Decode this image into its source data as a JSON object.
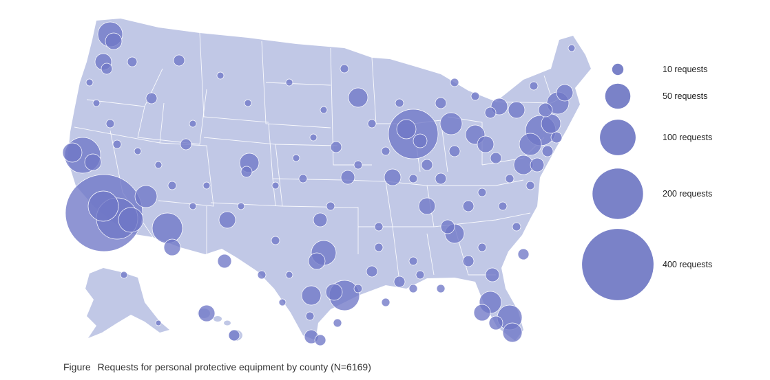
{
  "figure": {
    "label": "Figure",
    "title": "Requests for personal protective equipment by county (N=6169)"
  },
  "map_kind": "proportional-symbol map of the United States",
  "colors": {
    "land": "#c1c8e6",
    "bubble": "#7077c6",
    "legend": "#7a82c8",
    "state_border": "#ffffff"
  },
  "legend": {
    "items": [
      {
        "value": 10,
        "label": "10 requests"
      },
      {
        "value": 50,
        "label": "50 requests"
      },
      {
        "value": 100,
        "label": "100 requests"
      },
      {
        "value": 200,
        "label": "200 requests"
      },
      {
        "value": 400,
        "label": "400 requests"
      }
    ]
  }
}
